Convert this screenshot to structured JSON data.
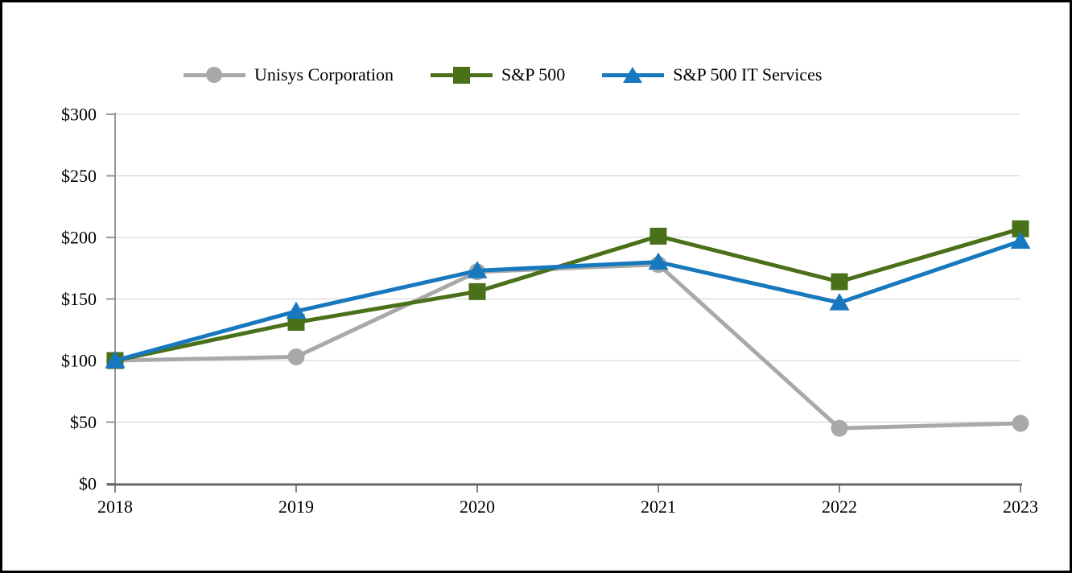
{
  "chart_data": {
    "type": "line",
    "title": "",
    "xlabel": "",
    "ylabel": "",
    "categories": [
      "2018",
      "2019",
      "2020",
      "2021",
      "2022",
      "2023"
    ],
    "series": [
      {
        "name": "Unisys Corporation",
        "marker": "circle",
        "color": "#A9A9A9",
        "values": [
          100,
          103,
          172,
          178,
          45,
          49
        ]
      },
      {
        "name": "S&P 500",
        "marker": "square",
        "color": "#4A7019",
        "values": [
          100,
          131,
          156,
          201,
          164,
          207
        ]
      },
      {
        "name": "S&P 500 IT Services",
        "marker": "triangle",
        "color": "#1878BE",
        "values": [
          100,
          140,
          173,
          180,
          147,
          197
        ]
      }
    ],
    "ylim": [
      0,
      300
    ],
    "ytick_step": 50,
    "ytick_labels": [
      "$0",
      "$50",
      "$100",
      "$150",
      "$200",
      "$250",
      "$300"
    ],
    "grid": true,
    "legend_position": "top",
    "style": {
      "grid_color": "#D9D9D9",
      "y_axis_color": "#8C8C8C",
      "x_axis_color": "#666666",
      "text_color": "#000000",
      "background": "#FFFFFF",
      "frame_border_color": "#000000"
    }
  }
}
